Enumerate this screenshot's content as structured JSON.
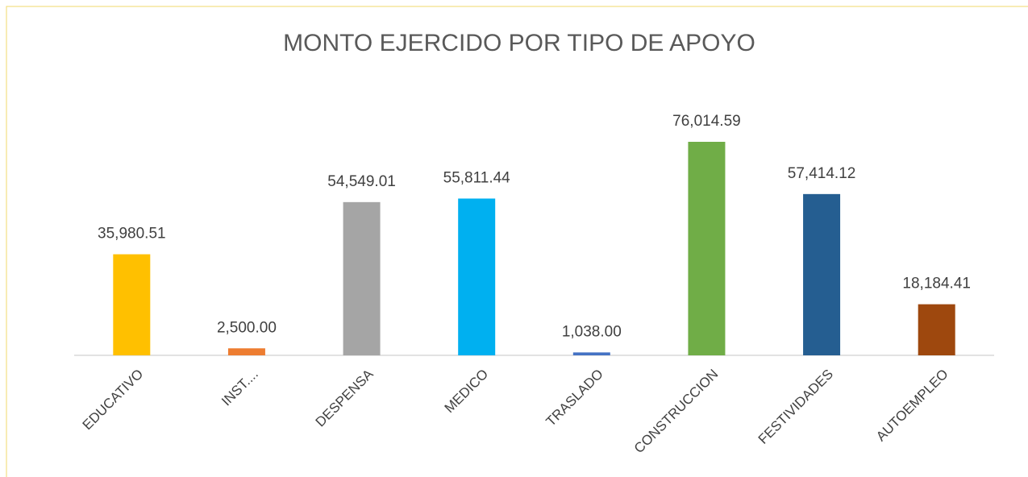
{
  "chart_data": {
    "type": "bar",
    "title": "MONTO EJERCIDO POR TIPO DE APOYO",
    "categories": [
      "EDUCATIVO",
      "INST....",
      "DESPENSA",
      "MEDICO",
      "TRASLADO",
      "CONSTRUCCION",
      "FESTIVIDADES",
      "AUTOEMPLEO"
    ],
    "values": [
      35980.51,
      2500.0,
      54549.01,
      55811.44,
      1038.0,
      76014.59,
      57414.12,
      18184.41
    ],
    "value_labels": [
      "35,980.51",
      "2,500.00",
      "54,549.01",
      "55,811.44",
      "1,038.00",
      "76,014.59",
      "57,414.12",
      "18,184.41"
    ],
    "colors": [
      "#ffc000",
      "#ed7d31",
      "#a5a5a5",
      "#00b0f0",
      "#4472c4",
      "#70ad47",
      "#255e91",
      "#9e480e"
    ]
  }
}
